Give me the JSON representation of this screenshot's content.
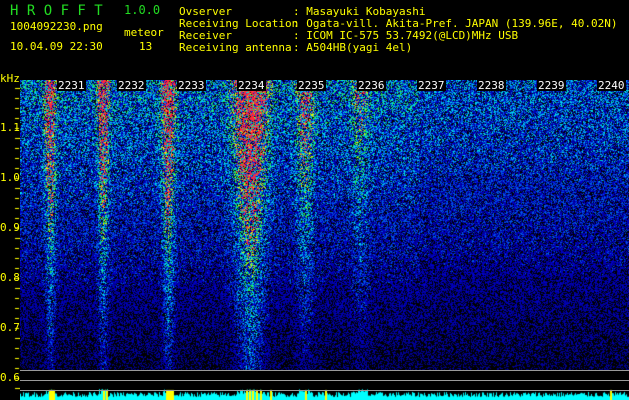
{
  "app": {
    "title": "H R O F F T",
    "version": "1.0.0"
  },
  "file": {
    "name": "1004092230.png",
    "datetime": "10.04.09 22:30"
  },
  "meteor": {
    "label": "meteor",
    "count": "13"
  },
  "info": [
    {
      "label": "Ovserver",
      "value": ": Masayuki Kobayashi"
    },
    {
      "label": "Receiving Location",
      "value": ": Ogata-vill. Akita-Pref. JAPAN (139.96E, 40.02N)"
    },
    {
      "label": "Receiver",
      "value": ": ICOM IC-575 53.7492(@LCD)MHz USB"
    },
    {
      "label": "Receiving antenna",
      "value": ": A504HB(yagi 4el)"
    }
  ],
  "yaxis": {
    "unit": "kHz",
    "ticks": [
      "1.1",
      "1.0",
      "0.9",
      "0.8",
      "0.7",
      "0.6"
    ]
  },
  "xaxis": {
    "ticks": [
      "2231",
      "2232",
      "2233",
      "2234",
      "2235",
      "2236",
      "2237",
      "2238",
      "2239",
      "2240"
    ]
  },
  "colors": {
    "text": "#ffff00",
    "title": "#22dd22",
    "background": "#000000",
    "signal_bar": "#00ffff"
  }
}
